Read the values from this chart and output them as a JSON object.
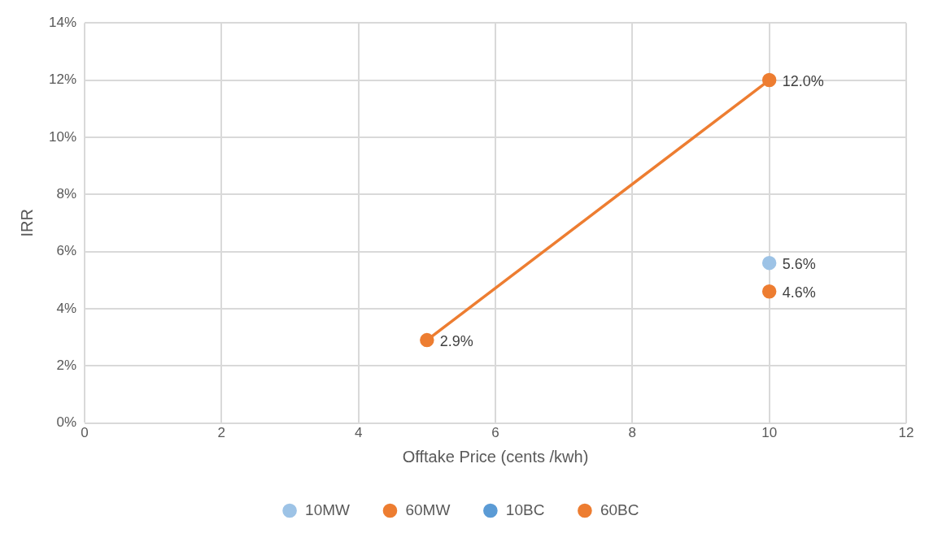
{
  "chart_data": {
    "type": "line",
    "xlabel": "Offtake Price (cents /kwh)",
    "ylabel": "IRR",
    "x": [
      5,
      10
    ],
    "xlim": [
      0,
      12
    ],
    "xticks": [
      0,
      2,
      4,
      6,
      8,
      10,
      12
    ],
    "ylim": [
      0,
      14
    ],
    "yticks": [
      {
        "value": 0,
        "label": "0%"
      },
      {
        "value": 2,
        "label": "2%"
      },
      {
        "value": 4,
        "label": "4%"
      },
      {
        "value": 6,
        "label": "6%"
      },
      {
        "value": 8,
        "label": "8%"
      },
      {
        "value": 10,
        "label": "10%"
      },
      {
        "value": 12,
        "label": "12%"
      },
      {
        "value": 14,
        "label": "14%"
      }
    ],
    "grid": true,
    "legend": "bottom",
    "marker": "circle",
    "series": [
      {
        "name": "10MW",
        "color": "#9dc3e6",
        "line_style": "solid",
        "values": [
          null,
          5.6
        ],
        "value_labels": [
          null,
          "5.6%"
        ]
      },
      {
        "name": "60MW",
        "color": "#ed7d31",
        "line_style": "solid",
        "values": [
          2.9,
          12.0
        ],
        "value_labels": [
          "2.9%",
          "12.0%"
        ]
      },
      {
        "name": "10BC",
        "color": "#5b9bd5",
        "line_style": "dashed",
        "values": [
          null,
          null
        ]
      },
      {
        "name": "60BC",
        "color": "#ed7d31",
        "line_style": "dashed",
        "values": [
          null,
          4.6
        ],
        "value_labels": [
          null,
          "4.6%"
        ]
      }
    ]
  }
}
